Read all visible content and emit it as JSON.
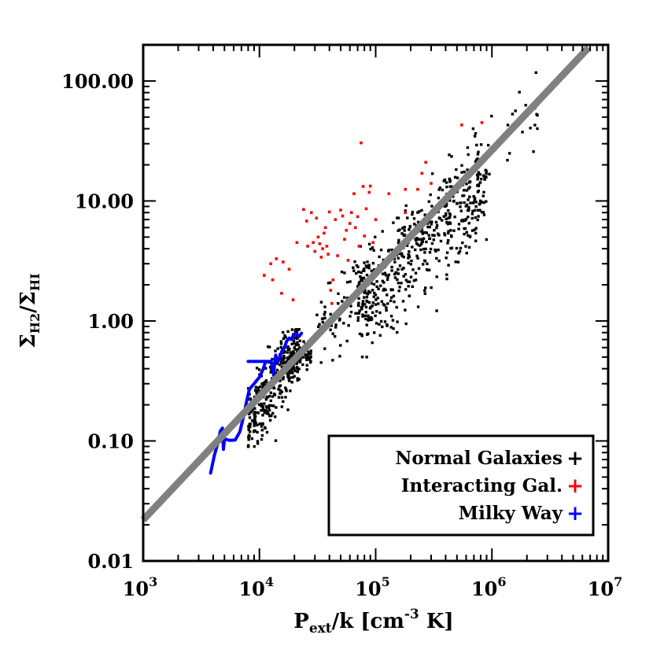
{
  "chart_data": {
    "type": "scatter",
    "xlabel": {
      "base": "P",
      "sub": "ext",
      "mid": "/k [cm",
      "sup": "-3",
      "end": " K]"
    },
    "ylabel": {
      "sym1": "Σ",
      "sub1": "H2",
      "slash": "/",
      "sym2": "Σ",
      "sub2": "HI"
    },
    "x_scale": "log",
    "y_scale": "log",
    "xlim": [
      1000,
      10000000
    ],
    "ylim": [
      0.01,
      200
    ],
    "x_ticks": [
      {
        "value": 1000,
        "base": "10",
        "exp": "3"
      },
      {
        "value": 10000,
        "base": "10",
        "exp": "4"
      },
      {
        "value": 100000,
        "base": "10",
        "exp": "5"
      },
      {
        "value": 1000000,
        "base": "10",
        "exp": "6"
      },
      {
        "value": 10000000,
        "base": "10",
        "exp": "7"
      }
    ],
    "y_ticks": [
      {
        "value": 0.01,
        "label": "0.01"
      },
      {
        "value": 0.1,
        "label": "0.10"
      },
      {
        "value": 1,
        "label": "1.00"
      },
      {
        "value": 10,
        "label": "10.00"
      },
      {
        "value": 100,
        "label": "100.00"
      }
    ],
    "fit_line": {
      "color": "#808080",
      "x": [
        1000,
        6800000
      ],
      "y": [
        0.022,
        190
      ]
    },
    "legend": {
      "placement": "bottom-right",
      "entries": [
        {
          "label": "Normal Galaxies",
          "marker": "+",
          "color": "#000000"
        },
        {
          "label": "Interacting Gal.",
          "marker": "+",
          "color": "#ff0000"
        },
        {
          "label": "Milky Way",
          "marker": "+",
          "color": "#0000ff"
        }
      ]
    },
    "series": [
      {
        "color": "#000000",
        "clusters": [
          {
            "n": 320,
            "x_range": [
              8000,
              22000
            ],
            "y_center": 0.3,
            "slope": 1.5,
            "scatter": 0.42,
            "y_range": [
              0.09,
              0.85
            ]
          },
          {
            "n": 60,
            "x_range": [
              18000,
              28000
            ],
            "y_center": 0.45,
            "slope": 0.6,
            "scatter": 0.2,
            "y_range": [
              0.2,
              0.9
            ]
          },
          {
            "n": 90,
            "x_range": [
              30000,
              100000
            ],
            "y_center": 1.4,
            "slope": 0.9,
            "scatter": 0.5,
            "y_range": [
              0.45,
              5
            ]
          },
          {
            "n": 520,
            "x_range": [
              70000,
              900000
            ],
            "y_center": 4.5,
            "slope": 0.92,
            "scatter": 0.55,
            "y_range": [
              0.5,
              40
            ]
          },
          {
            "n": 20,
            "x_range": [
              900000,
              2500000
            ],
            "y_center": 40,
            "slope": 0.9,
            "scatter": 0.5,
            "y_range": [
              8,
              140
            ]
          }
        ]
      },
      {
        "color": "#ff0000",
        "points": [
          [
            11000,
            2.4
          ],
          [
            12500,
            3.0
          ],
          [
            13000,
            2.2
          ],
          [
            14000,
            3.3
          ],
          [
            15500,
            1.7
          ],
          [
            16000,
            3.1
          ],
          [
            18000,
            2.7
          ],
          [
            19500,
            1.5
          ],
          [
            21000,
            4.5
          ],
          [
            24000,
            8.5
          ],
          [
            25500,
            6.8
          ],
          [
            26000,
            4.2
          ],
          [
            28000,
            8.0
          ],
          [
            29000,
            4.5
          ],
          [
            30000,
            3.8
          ],
          [
            31000,
            7.2
          ],
          [
            32000,
            5.0
          ],
          [
            33000,
            4.4
          ],
          [
            34000,
            3.4
          ],
          [
            35000,
            4.0
          ],
          [
            36000,
            5.4
          ],
          [
            37000,
            6.0
          ],
          [
            38000,
            4.2
          ],
          [
            39000,
            3.6
          ],
          [
            40000,
            8.1
          ],
          [
            41000,
            1.8
          ],
          [
            42000,
            1.4
          ],
          [
            43000,
            2.2
          ],
          [
            45000,
            7.0
          ],
          [
            47000,
            3.5
          ],
          [
            50000,
            8.4
          ],
          [
            52000,
            7.5
          ],
          [
            54000,
            4.8
          ],
          [
            56000,
            5.7
          ],
          [
            58000,
            3.2
          ],
          [
            60000,
            6.5
          ],
          [
            62000,
            8.0
          ],
          [
            65000,
            11.5
          ],
          [
            67000,
            6.0
          ],
          [
            70000,
            7.4
          ],
          [
            72000,
            4.2
          ],
          [
            75000,
            30.5
          ],
          [
            78000,
            13.2
          ],
          [
            80000,
            5.1
          ],
          [
            83000,
            8.6
          ],
          [
            88000,
            11.8
          ],
          [
            90000,
            13.3
          ],
          [
            95000,
            4.5
          ],
          [
            100000,
            7.0
          ],
          [
            130000,
            11.5
          ],
          [
            180000,
            12.5
          ],
          [
            230000,
            12.5
          ],
          [
            300000,
            14.0
          ],
          [
            180000,
            8.0
          ],
          [
            250000,
            17.0
          ],
          [
            270000,
            21.0
          ],
          [
            550000,
            43.0
          ],
          [
            820000,
            45.0
          ]
        ]
      },
      {
        "color": "#0000ff",
        "points": [
          [
            3800,
            0.054
          ],
          [
            4100,
            0.076
          ],
          [
            4400,
            0.097
          ],
          [
            4600,
            0.12
          ],
          [
            4800,
            0.128
          ],
          [
            4900,
            0.085
          ],
          [
            5000,
            0.104
          ],
          [
            5600,
            0.101
          ],
          [
            6200,
            0.102
          ],
          [
            6800,
            0.12
          ],
          [
            7300,
            0.16
          ],
          [
            7800,
            0.22
          ],
          [
            8200,
            0.27
          ],
          [
            9000,
            0.3
          ],
          [
            10000,
            0.34
          ],
          [
            10800,
            0.4
          ],
          [
            11300,
            0.46
          ],
          [
            8000,
            0.46
          ],
          [
            12600,
            0.46
          ],
          [
            13200,
            0.36
          ],
          [
            13800,
            0.52
          ],
          [
            14500,
            0.46
          ],
          [
            15600,
            0.56
          ],
          [
            16400,
            0.6
          ],
          [
            17200,
            0.68
          ],
          [
            18000,
            0.72
          ],
          [
            18800,
            0.7
          ],
          [
            19600,
            0.76
          ],
          [
            20600,
            0.78
          ],
          [
            21800,
            0.74
          ],
          [
            23000,
            0.79
          ]
        ]
      }
    ]
  }
}
